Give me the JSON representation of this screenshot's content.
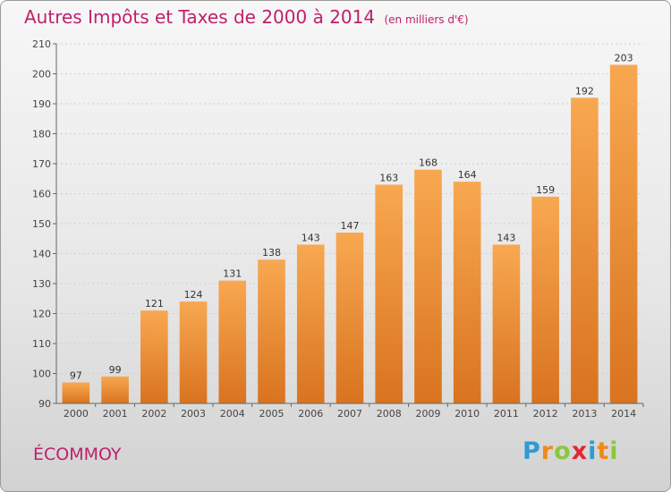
{
  "title": "Autres Impôts et Taxes de 2000 à 2014",
  "subtitle": "(en milliers d'€)",
  "place": "ÉCOMMOY",
  "brand": {
    "text": "Proxiti",
    "letters": [
      {
        "ch": "P",
        "color": "#2f9bd6"
      },
      {
        "ch": "r",
        "color": "#f08a1a"
      },
      {
        "ch": "o",
        "color": "#8cc63f"
      },
      {
        "ch": "x",
        "color": "#e3262f"
      },
      {
        "ch": "i",
        "color": "#2f9bd6"
      },
      {
        "ch": "t",
        "color": "#f08a1a"
      },
      {
        "ch": "i",
        "color": "#8cc63f"
      }
    ]
  },
  "colors": {
    "title": "#c01f6b",
    "bar_light": "#f8a851",
    "bar_dark": "#d9731f"
  },
  "chart_data": {
    "type": "bar",
    "title": "Autres Impôts et Taxes de 2000 à 2014",
    "subtitle": "(en milliers d'€)",
    "categories": [
      "2000",
      "2001",
      "2002",
      "2003",
      "2004",
      "2005",
      "2006",
      "2007",
      "2008",
      "2009",
      "2010",
      "2011",
      "2012",
      "2013",
      "2014"
    ],
    "values": [
      97,
      99,
      121,
      124,
      131,
      138,
      143,
      147,
      163,
      168,
      164,
      143,
      159,
      192,
      203
    ],
    "ylim": [
      90,
      210
    ],
    "yticks": [
      90,
      100,
      110,
      120,
      130,
      140,
      150,
      160,
      170,
      180,
      190,
      200,
      210
    ],
    "grid": true,
    "xlabel": "",
    "ylabel": ""
  }
}
